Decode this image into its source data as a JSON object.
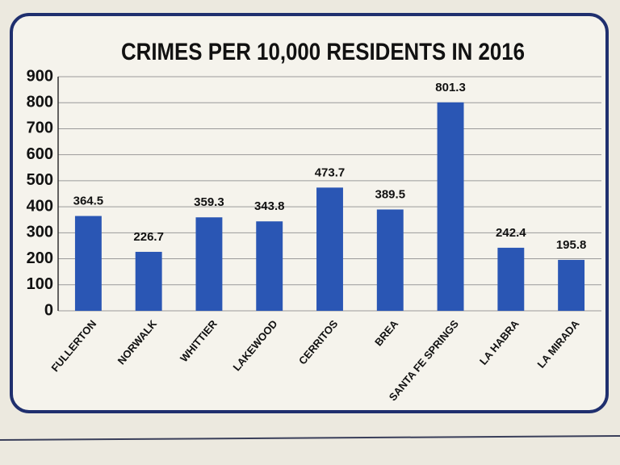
{
  "chart_data": {
    "type": "bar",
    "title": "CRIMES PER 10,000 RESIDENTS IN 2016",
    "categories": [
      "FULLERTON",
      "NORWALK",
      "WHITTIER",
      "LAKEWOOD",
      "CERRITOS",
      "BREA",
      "SANTA FE SPRINGS",
      "LA HABRA",
      "LA MIRADA"
    ],
    "values": [
      364.5,
      226.7,
      359.3,
      343.8,
      473.7,
      389.5,
      801.3,
      242.4,
      195.8
    ],
    "color": "#2a56b4",
    "ylim": [
      0,
      900
    ],
    "yticks": [
      0,
      100,
      200,
      300,
      400,
      500,
      600,
      700,
      800,
      900
    ],
    "grid": true
  }
}
